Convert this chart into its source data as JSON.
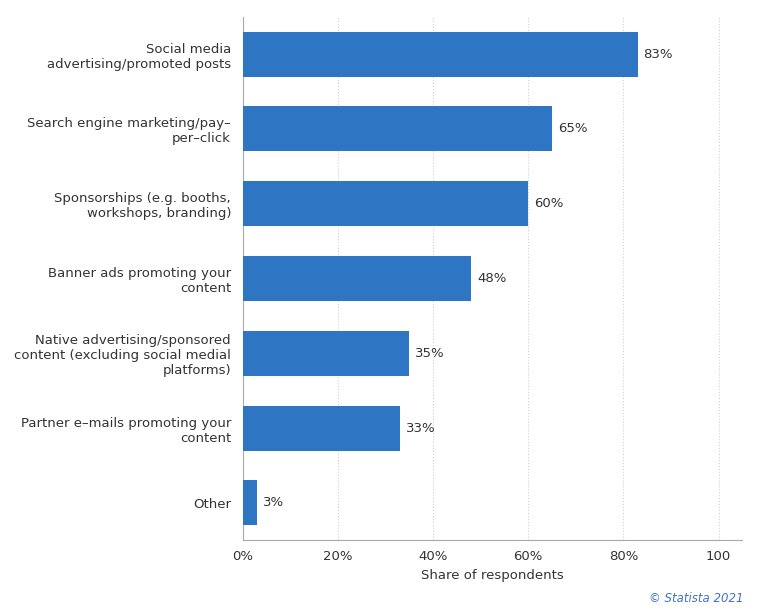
{
  "categories": [
    "Other",
    "Partner e–mails promoting your\ncontent",
    "Native advertising/sponsored\ncontent (excluding social medial\nplatforms)",
    "Banner ads promoting your\ncontent",
    "Sponsorships (e.g. booths,\nworkshops, branding)",
    "Search engine marketing/pay–\nper–click",
    "Social media\nadvertising/promoted posts"
  ],
  "values": [
    3,
    33,
    35,
    48,
    60,
    65,
    83
  ],
  "bar_color": "#2e75c3",
  "label_color": "#333333",
  "xlabel": "Share of respondents",
  "xlim": [
    0,
    105
  ],
  "xticks": [
    0,
    20,
    40,
    60,
    80,
    100
  ],
  "xtick_labels": [
    "0%",
    "20%",
    "40%",
    "60%",
    "80%",
    "100"
  ],
  "fig_background_color": "#ffffff",
  "plot_background_color": "#ffffff",
  "grid_color": "#d0d0d0",
  "bar_height": 0.6,
  "value_labels": [
    "3%",
    "33%",
    "35%",
    "48%",
    "60%",
    "65%",
    "83%"
  ],
  "copyright_text": "© Statista 2021",
  "label_fontsize": 9.5,
  "tick_fontsize": 9.5,
  "xlabel_fontsize": 9.5,
  "copyright_fontsize": 8.5,
  "value_label_fontsize": 9.5
}
